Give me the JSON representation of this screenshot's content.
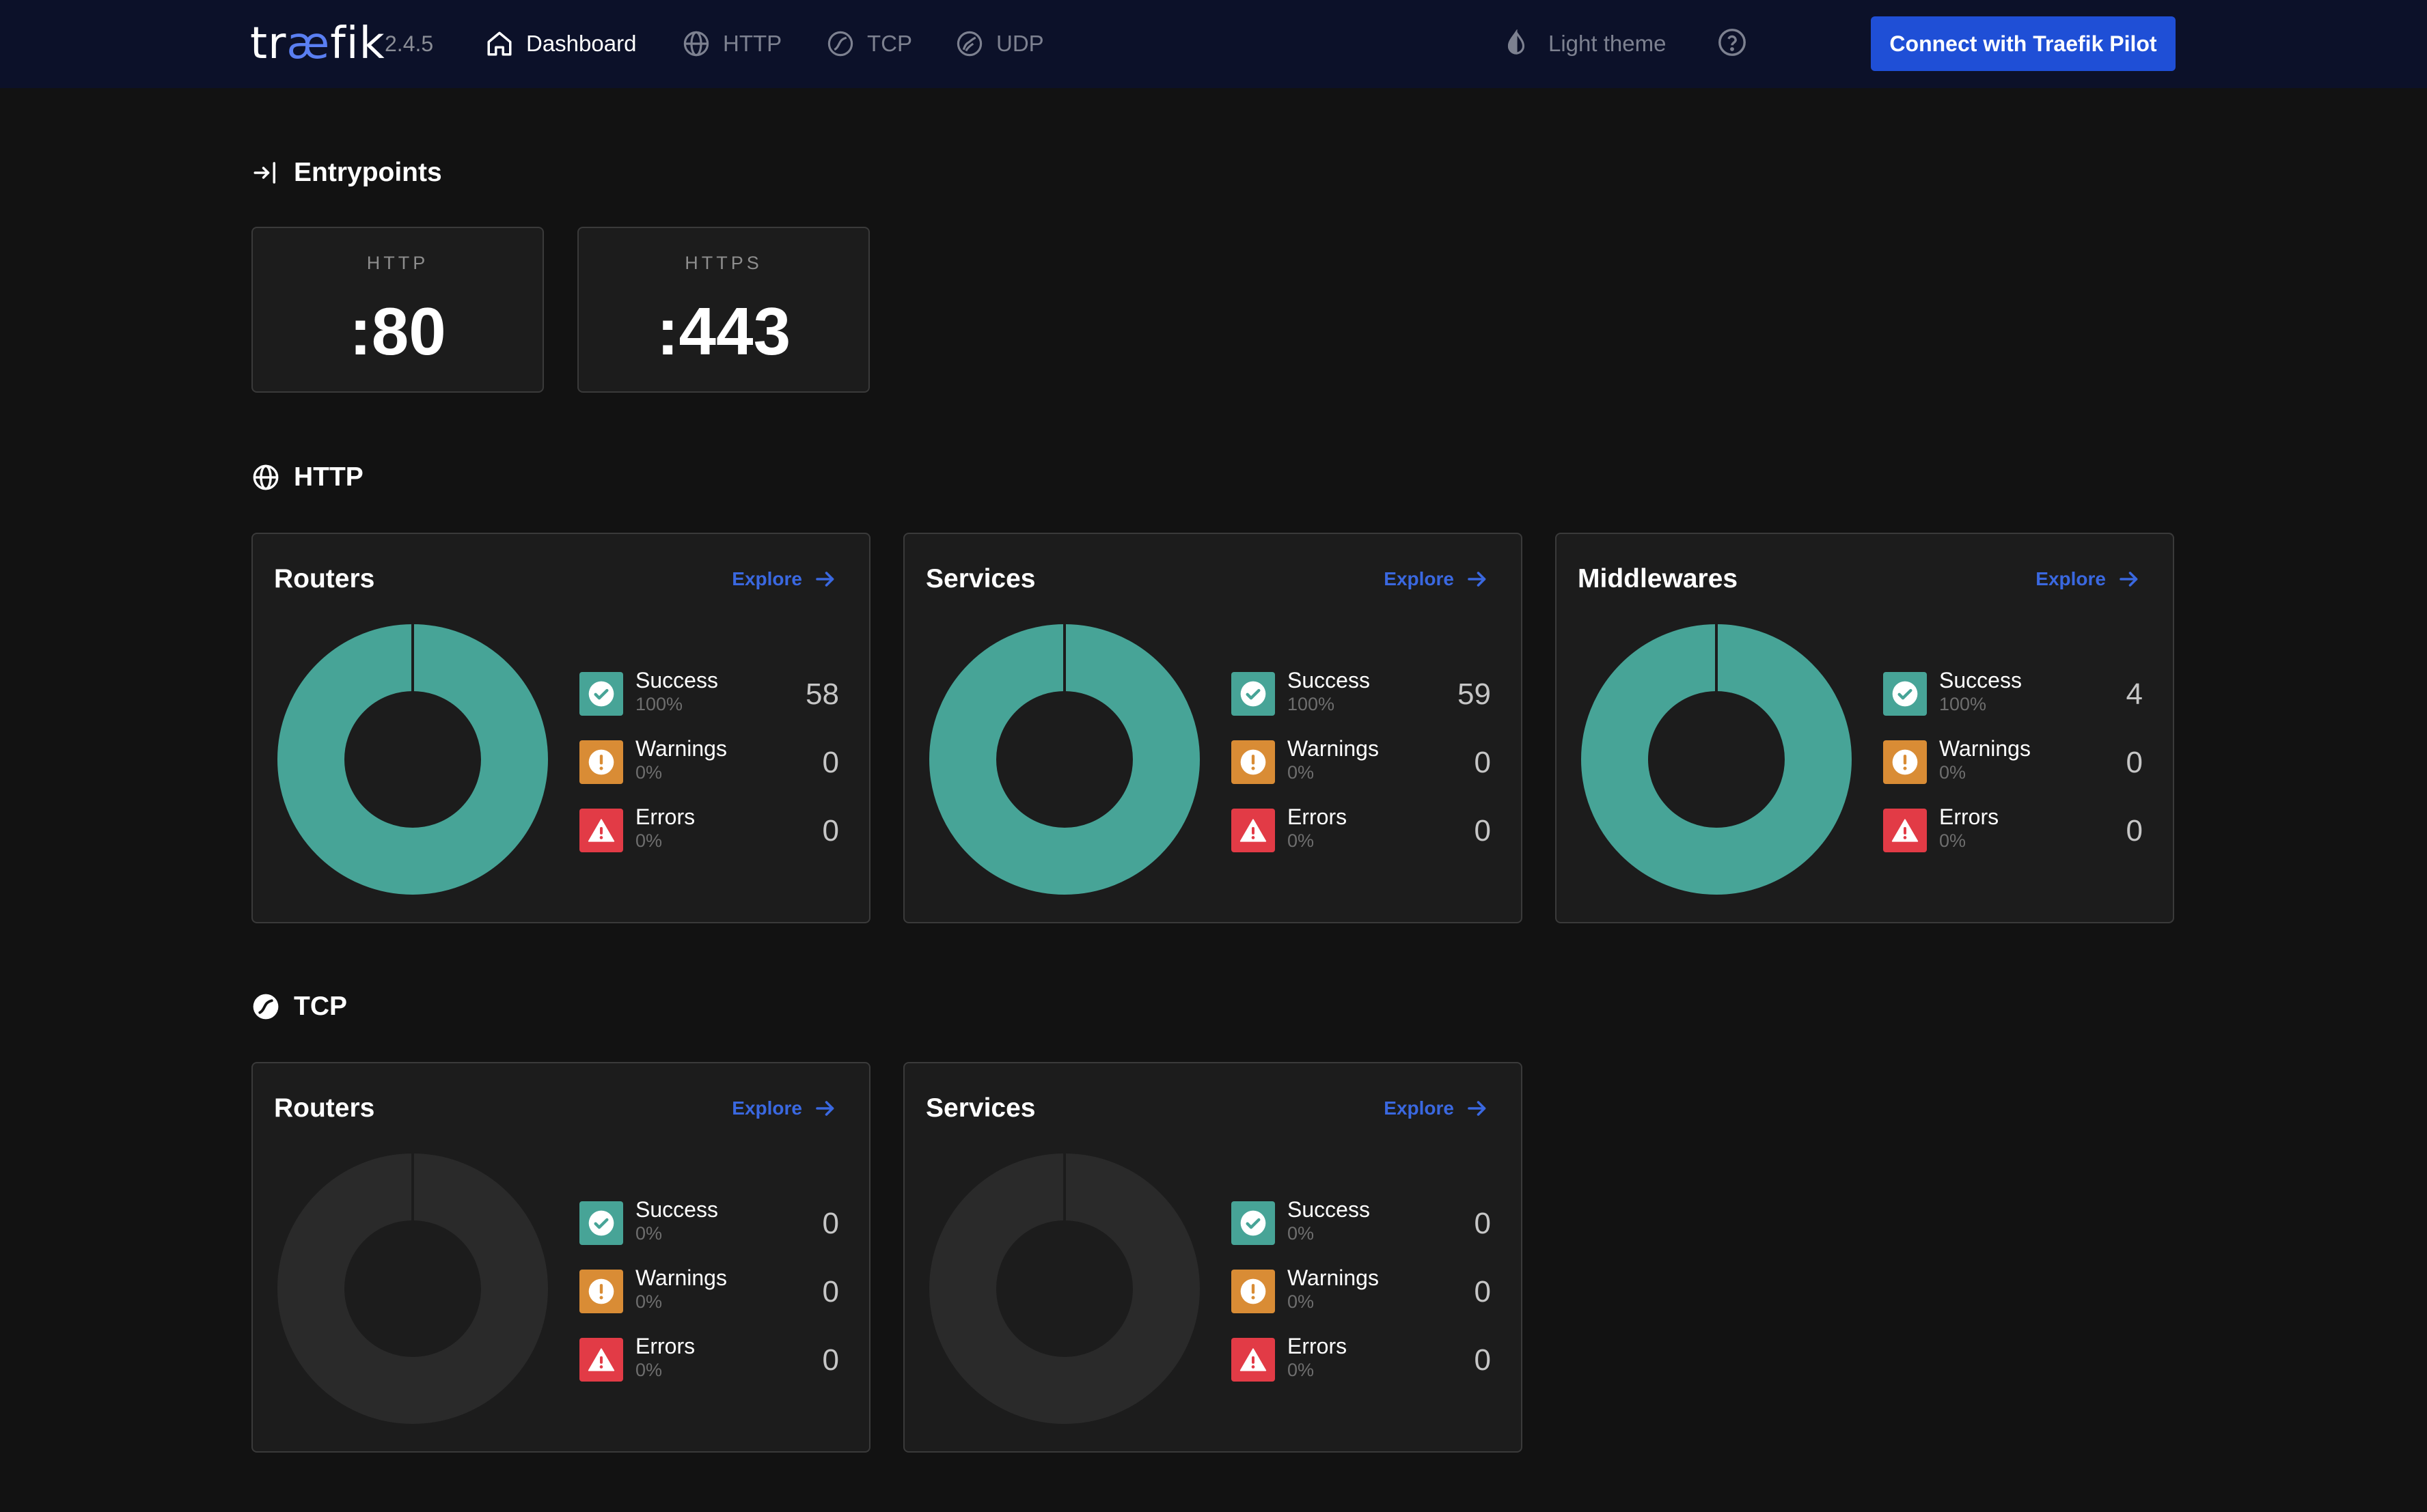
{
  "brand": {
    "logo_pre": "tr",
    "logo_ae": "æ",
    "logo_post": "fik",
    "version": "2.4.5"
  },
  "nav": {
    "items": [
      {
        "label": "Dashboard",
        "icon": "home-icon",
        "active": true
      },
      {
        "label": "HTTP",
        "icon": "globe-icon",
        "active": false
      },
      {
        "label": "TCP",
        "icon": "tcp-icon",
        "active": false
      },
      {
        "label": "UDP",
        "icon": "udp-icon",
        "active": false
      }
    ],
    "theme_label": "Light theme",
    "help_icon": "help-icon",
    "pilot_button": "Connect with Traefik Pilot"
  },
  "colors": {
    "success": "#47a497",
    "warning": "#d98c35",
    "error": "#e23b46",
    "empty_ring": "#2a2a2a",
    "accent": "#1f4fd6"
  },
  "entrypoints": {
    "title": "Entrypoints",
    "items": [
      {
        "name": "HTTP",
        "port": ":80"
      },
      {
        "name": "HTTPS",
        "port": ":443"
      }
    ]
  },
  "http": {
    "title": "HTTP",
    "cards": [
      {
        "title": "Routers",
        "explore": "Explore",
        "success": {
          "label": "Success",
          "pct": "100%",
          "count": "58"
        },
        "warnings": {
          "label": "Warnings",
          "pct": "0%",
          "count": "0"
        },
        "errors": {
          "label": "Errors",
          "pct": "0%",
          "count": "0"
        }
      },
      {
        "title": "Services",
        "explore": "Explore",
        "success": {
          "label": "Success",
          "pct": "100%",
          "count": "59"
        },
        "warnings": {
          "label": "Warnings",
          "pct": "0%",
          "count": "0"
        },
        "errors": {
          "label": "Errors",
          "pct": "0%",
          "count": "0"
        }
      },
      {
        "title": "Middlewares",
        "explore": "Explore",
        "success": {
          "label": "Success",
          "pct": "100%",
          "count": "4"
        },
        "warnings": {
          "label": "Warnings",
          "pct": "0%",
          "count": "0"
        },
        "errors": {
          "label": "Errors",
          "pct": "0%",
          "count": "0"
        }
      }
    ]
  },
  "tcp": {
    "title": "TCP",
    "cards": [
      {
        "title": "Routers",
        "explore": "Explore",
        "success": {
          "label": "Success",
          "pct": "0%",
          "count": "0"
        },
        "warnings": {
          "label": "Warnings",
          "pct": "0%",
          "count": "0"
        },
        "errors": {
          "label": "Errors",
          "pct": "0%",
          "count": "0"
        }
      },
      {
        "title": "Services",
        "explore": "Explore",
        "success": {
          "label": "Success",
          "pct": "0%",
          "count": "0"
        },
        "warnings": {
          "label": "Warnings",
          "pct": "0%",
          "count": "0"
        },
        "errors": {
          "label": "Errors",
          "pct": "0%",
          "count": "0"
        }
      }
    ]
  }
}
